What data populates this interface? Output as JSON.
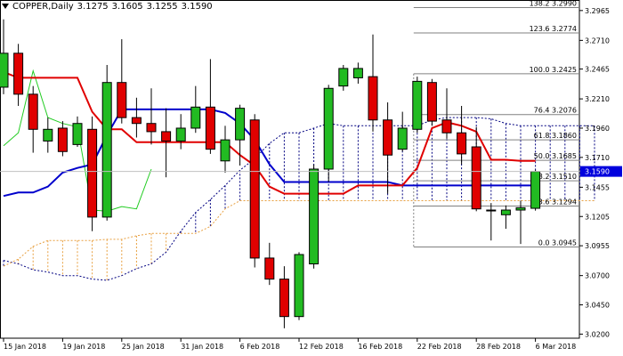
{
  "header": {
    "symbol": "COPPER,Daily",
    "open": "3.1275",
    "high": "3.1605",
    "low": "3.1255",
    "close": "3.1590",
    "menu_icon": "triangle-down-icon"
  },
  "colors": {
    "bull": "#22bb22",
    "bear": "#e00000",
    "kijun": "#0000cc",
    "tenkan": "#e00000",
    "chikou": "#22cc22",
    "cloud_a": "#000080",
    "cloud_b": "#e8a040",
    "fib": "#808080",
    "price_tag": "#0000dd"
  },
  "chart_data": {
    "type": "candlestick",
    "ylim": [
      3.0165,
      3.3055
    ],
    "y_ticks": [
      "3.2965",
      "3.2710",
      "3.2465",
      "3.2210",
      "3.1960",
      "3.1710",
      "3.1455",
      "3.1205",
      "3.0955",
      "3.0700",
      "3.0450",
      "3.0200"
    ],
    "x_ticks": [
      {
        "label": "15 Jan 2018",
        "index": 0
      },
      {
        "label": "19 Jan 2018",
        "index": 4
      },
      {
        "label": "25 Jan 2018",
        "index": 8
      },
      {
        "label": "31 Jan 2018",
        "index": 12
      },
      {
        "label": "6 Feb 2018",
        "index": 16
      },
      {
        "label": "12 Feb 2018",
        "index": 20
      },
      {
        "label": "16 Feb 2018",
        "index": 24
      },
      {
        "label": "22 Feb 2018",
        "index": 28
      },
      {
        "label": "28 Feb 2018",
        "index": 32
      },
      {
        "label": "6 Mar 2018",
        "index": 36
      }
    ],
    "candles": [
      {
        "o": 3.231,
        "h": 3.289,
        "l": 3.225,
        "c": 3.26
      },
      {
        "o": 3.26,
        "h": 3.268,
        "l": 3.215,
        "c": 3.225
      },
      {
        "o": 3.225,
        "h": 3.232,
        "l": 3.175,
        "c": 3.195
      },
      {
        "o": 3.185,
        "h": 3.205,
        "l": 3.175,
        "c": 3.195
      },
      {
        "o": 3.196,
        "h": 3.202,
        "l": 3.172,
        "c": 3.176
      },
      {
        "o": 3.182,
        "h": 3.206,
        "l": 3.18,
        "c": 3.2
      },
      {
        "o": 3.195,
        "h": 3.206,
        "l": 3.108,
        "c": 3.12
      },
      {
        "o": 3.12,
        "h": 3.25,
        "l": 3.117,
        "c": 3.235
      },
      {
        "o": 3.235,
        "h": 3.272,
        "l": 3.2,
        "c": 3.205
      },
      {
        "o": 3.205,
        "h": 3.222,
        "l": 3.188,
        "c": 3.2
      },
      {
        "o": 3.2,
        "h": 3.23,
        "l": 3.182,
        "c": 3.193
      },
      {
        "o": 3.193,
        "h": 3.213,
        "l": 3.154,
        "c": 3.185
      },
      {
        "o": 3.185,
        "h": 3.208,
        "l": 3.178,
        "c": 3.196
      },
      {
        "o": 3.196,
        "h": 3.232,
        "l": 3.192,
        "c": 3.214
      },
      {
        "o": 3.214,
        "h": 3.255,
        "l": 3.174,
        "c": 3.178
      },
      {
        "o": 3.168,
        "h": 3.198,
        "l": 3.158,
        "c": 3.186
      },
      {
        "o": 3.186,
        "h": 3.216,
        "l": 3.164,
        "c": 3.213
      },
      {
        "o": 3.203,
        "h": 3.208,
        "l": 3.077,
        "c": 3.085
      },
      {
        "o": 3.085,
        "h": 3.098,
        "l": 3.062,
        "c": 3.067
      },
      {
        "o": 3.067,
        "h": 3.078,
        "l": 3.025,
        "c": 3.035
      },
      {
        "o": 3.035,
        "h": 3.09,
        "l": 3.032,
        "c": 3.088
      },
      {
        "o": 3.08,
        "h": 3.165,
        "l": 3.076,
        "c": 3.161
      },
      {
        "o": 3.161,
        "h": 3.233,
        "l": 3.15,
        "c": 3.23
      },
      {
        "o": 3.232,
        "h": 3.25,
        "l": 3.228,
        "c": 3.247
      },
      {
        "o": 3.239,
        "h": 3.252,
        "l": 3.234,
        "c": 3.247
      },
      {
        "o": 3.24,
        "h": 3.276,
        "l": 3.193,
        "c": 3.203
      },
      {
        "o": 3.203,
        "h": 3.218,
        "l": 3.14,
        "c": 3.173
      },
      {
        "o": 3.178,
        "h": 3.21,
        "l": 3.176,
        "c": 3.196
      },
      {
        "o": 3.195,
        "h": 3.24,
        "l": 3.192,
        "c": 3.236
      },
      {
        "o": 3.235,
        "h": 3.238,
        "l": 3.198,
        "c": 3.202
      },
      {
        "o": 3.203,
        "h": 3.23,
        "l": 3.187,
        "c": 3.192
      },
      {
        "o": 3.192,
        "h": 3.215,
        "l": 3.165,
        "c": 3.174
      },
      {
        "o": 3.18,
        "h": 3.197,
        "l": 3.125,
        "c": 3.127
      },
      {
        "o": 3.126,
        "h": 3.132,
        "l": 3.1,
        "c": 3.126
      },
      {
        "o": 3.122,
        "h": 3.13,
        "l": 3.11,
        "c": 3.126
      },
      {
        "o": 3.126,
        "h": 3.134,
        "l": 3.097,
        "c": 3.128
      },
      {
        "o": 3.1275,
        "h": 3.1605,
        "l": 3.1255,
        "c": 3.159
      }
    ],
    "kijun": [
      [
        0,
        3.138
      ],
      [
        1,
        3.141
      ],
      [
        2,
        3.141
      ],
      [
        3,
        3.146
      ],
      [
        4,
        3.158
      ],
      [
        5,
        3.162
      ],
      [
        6,
        3.165
      ],
      [
        7,
        3.19
      ],
      [
        8,
        3.212
      ],
      [
        9,
        3.212
      ],
      [
        10,
        3.212
      ],
      [
        11,
        3.212
      ],
      [
        12,
        3.212
      ],
      [
        13,
        3.212
      ],
      [
        14,
        3.212
      ],
      [
        15,
        3.209
      ],
      [
        16,
        3.2
      ],
      [
        17,
        3.186
      ],
      [
        18,
        3.165
      ],
      [
        19,
        3.15
      ],
      [
        20,
        3.15
      ],
      [
        21,
        3.15
      ],
      [
        22,
        3.15
      ],
      [
        23,
        3.15
      ],
      [
        24,
        3.15
      ],
      [
        25,
        3.15
      ],
      [
        26,
        3.15
      ],
      [
        27,
        3.147
      ],
      [
        28,
        3.147
      ],
      [
        29,
        3.147
      ],
      [
        30,
        3.147
      ],
      [
        31,
        3.147
      ],
      [
        32,
        3.147
      ],
      [
        33,
        3.147
      ],
      [
        34,
        3.147
      ],
      [
        35,
        3.147
      ],
      [
        36,
        3.147
      ]
    ],
    "tenkan": [
      [
        0,
        3.244
      ],
      [
        1,
        3.239
      ],
      [
        2,
        3.239
      ],
      [
        3,
        3.239
      ],
      [
        4,
        3.239
      ],
      [
        5,
        3.239
      ],
      [
        6,
        3.21
      ],
      [
        7,
        3.195
      ],
      [
        8,
        3.195
      ],
      [
        9,
        3.184
      ],
      [
        10,
        3.184
      ],
      [
        11,
        3.184
      ],
      [
        12,
        3.184
      ],
      [
        13,
        3.184
      ],
      [
        14,
        3.184
      ],
      [
        15,
        3.184
      ],
      [
        16,
        3.173
      ],
      [
        17,
        3.164
      ],
      [
        18,
        3.146
      ],
      [
        19,
        3.14
      ],
      [
        20,
        3.14
      ],
      [
        21,
        3.14
      ],
      [
        22,
        3.14
      ],
      [
        23,
        3.14
      ],
      [
        24,
        3.147
      ],
      [
        25,
        3.147
      ],
      [
        26,
        3.147
      ],
      [
        27,
        3.147
      ],
      [
        28,
        3.162
      ],
      [
        29,
        3.196
      ],
      [
        30,
        3.201
      ],
      [
        31,
        3.198
      ],
      [
        32,
        3.193
      ],
      [
        33,
        3.169
      ],
      [
        34,
        3.169
      ],
      [
        35,
        3.168
      ],
      [
        36,
        3.168
      ]
    ],
    "chikou": [
      [
        0,
        3.181
      ],
      [
        1,
        3.192
      ],
      [
        2,
        3.245
      ],
      [
        3,
        3.205
      ],
      [
        4,
        3.2
      ],
      [
        5,
        3.197
      ],
      [
        6,
        3.126
      ],
      [
        7,
        3.125
      ],
      [
        8,
        3.129
      ],
      [
        9,
        3.127
      ],
      [
        10,
        3.161
      ]
    ],
    "senkou_a": [
      [
        0,
        3.083
      ],
      [
        1,
        3.08
      ],
      [
        2,
        3.075
      ],
      [
        3,
        3.073
      ],
      [
        4,
        3.07
      ],
      [
        5,
        3.07
      ],
      [
        6,
        3.067
      ],
      [
        7,
        3.066
      ],
      [
        8,
        3.07
      ],
      [
        9,
        3.076
      ],
      [
        10,
        3.08
      ],
      [
        11,
        3.09
      ],
      [
        12,
        3.108
      ],
      [
        13,
        3.124
      ],
      [
        14,
        3.135
      ],
      [
        15,
        3.147
      ],
      [
        16,
        3.16
      ],
      [
        17,
        3.17
      ],
      [
        18,
        3.183
      ],
      [
        19,
        3.192
      ],
      [
        20,
        3.192
      ],
      [
        21,
        3.196
      ],
      [
        22,
        3.2
      ],
      [
        23,
        3.198
      ],
      [
        24,
        3.198
      ],
      [
        25,
        3.198
      ],
      [
        26,
        3.198
      ],
      [
        27,
        3.198
      ],
      [
        28,
        3.198
      ],
      [
        29,
        3.203
      ],
      [
        30,
        3.205
      ],
      [
        31,
        3.205
      ],
      [
        32,
        3.205
      ],
      [
        33,
        3.204
      ],
      [
        34,
        3.2
      ],
      [
        35,
        3.198
      ],
      [
        36,
        3.198
      ],
      [
        37,
        3.198
      ],
      [
        38,
        3.198
      ],
      [
        39,
        3.198
      ],
      [
        40,
        3.198
      ]
    ],
    "senkou_b": [
      [
        0,
        3.078
      ],
      [
        1,
        3.084
      ],
      [
        2,
        3.095
      ],
      [
        3,
        3.1
      ],
      [
        4,
        3.1
      ],
      [
        5,
        3.1
      ],
      [
        6,
        3.1
      ],
      [
        7,
        3.101
      ],
      [
        8,
        3.101
      ],
      [
        9,
        3.104
      ],
      [
        10,
        3.106
      ],
      [
        11,
        3.106
      ],
      [
        12,
        3.106
      ],
      [
        13,
        3.106
      ],
      [
        14,
        3.112
      ],
      [
        15,
        3.127
      ],
      [
        16,
        3.134
      ],
      [
        17,
        3.134
      ],
      [
        18,
        3.134
      ],
      [
        19,
        3.134
      ],
      [
        20,
        3.134
      ],
      [
        21,
        3.134
      ],
      [
        22,
        3.134
      ],
      [
        23,
        3.134
      ],
      [
        24,
        3.134
      ],
      [
        25,
        3.134
      ],
      [
        26,
        3.134
      ],
      [
        27,
        3.134
      ],
      [
        28,
        3.134
      ],
      [
        29,
        3.134
      ],
      [
        30,
        3.134
      ],
      [
        31,
        3.134
      ],
      [
        32,
        3.134
      ],
      [
        33,
        3.134
      ],
      [
        34,
        3.134
      ],
      [
        35,
        3.134
      ],
      [
        36,
        3.134
      ],
      [
        37,
        3.134
      ],
      [
        38,
        3.134
      ],
      [
        39,
        3.134
      ],
      [
        40,
        3.134
      ]
    ],
    "fib_start_index": 28,
    "fib_levels": [
      {
        "label": "138.2",
        "value": "3.2990",
        "y": 3.299
      },
      {
        "label": "123.6",
        "value": "3.2774",
        "y": 3.2774
      },
      {
        "label": "100.0",
        "value": "3.2425",
        "y": 3.2425
      },
      {
        "label": "76.4",
        "value": "3.2076",
        "y": 3.2076
      },
      {
        "label": "61.8",
        "value": "3.1860",
        "y": 3.186
      },
      {
        "label": "50.0",
        "value": "3.1685",
        "y": 3.1685
      },
      {
        "label": "38.2",
        "value": "3.1510",
        "y": 3.151
      },
      {
        "label": "23.6",
        "value": "3.1294",
        "y": 3.1294
      },
      {
        "label": "0.0",
        "value": "3.0945",
        "y": 3.0945
      }
    ],
    "current_price": "3.1590"
  }
}
